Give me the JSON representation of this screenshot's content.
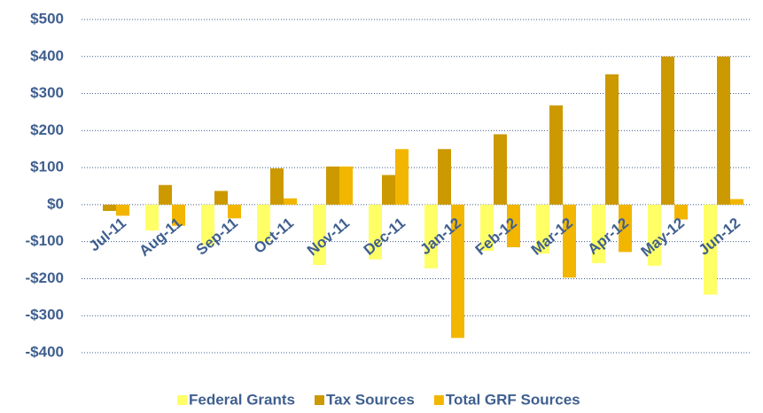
{
  "chart_data": {
    "type": "bar",
    "categories": [
      "Jul-11",
      "Aug-11",
      "Sep-11",
      "Oct-11",
      "Nov-11",
      "Dec-11",
      "Jan-12",
      "Feb-12",
      "Mar-12",
      "Apr-12",
      "May-12",
      "Jun-12"
    ],
    "series": [
      {
        "name": "Federal Grants",
        "color": "#ffff66",
        "values": [
          0,
          -70,
          -110,
          -100,
          -163,
          -148,
          -172,
          -125,
          -132,
          -158,
          -165,
          -243
        ]
      },
      {
        "name": "Tax Sources",
        "color": "#cc9900",
        "values": [
          -17,
          53,
          37,
          98,
          103,
          80,
          150,
          190,
          268,
          352,
          400,
          400
        ]
      },
      {
        "name": "Total GRF Sources",
        "color": "#f2b600",
        "values": [
          -30,
          -57,
          -37,
          17,
          103,
          150,
          -360,
          -115,
          -197,
          -128,
          -40,
          15
        ]
      }
    ],
    "ylim": [
      -400,
      500
    ],
    "yticks": [
      {
        "value": -400,
        "label": "-$400"
      },
      {
        "value": -300,
        "label": "-$300"
      },
      {
        "value": -200,
        "label": "-$200"
      },
      {
        "value": -100,
        "label": "-$100"
      },
      {
        "value": 0,
        "label": "$0"
      },
      {
        "value": 100,
        "label": "$100"
      },
      {
        "value": 200,
        "label": "$200"
      },
      {
        "value": 300,
        "label": "$300"
      },
      {
        "value": 400,
        "label": "$400"
      },
      {
        "value": 500,
        "label": "$500"
      }
    ],
    "grid": true,
    "legend": "bottom"
  }
}
